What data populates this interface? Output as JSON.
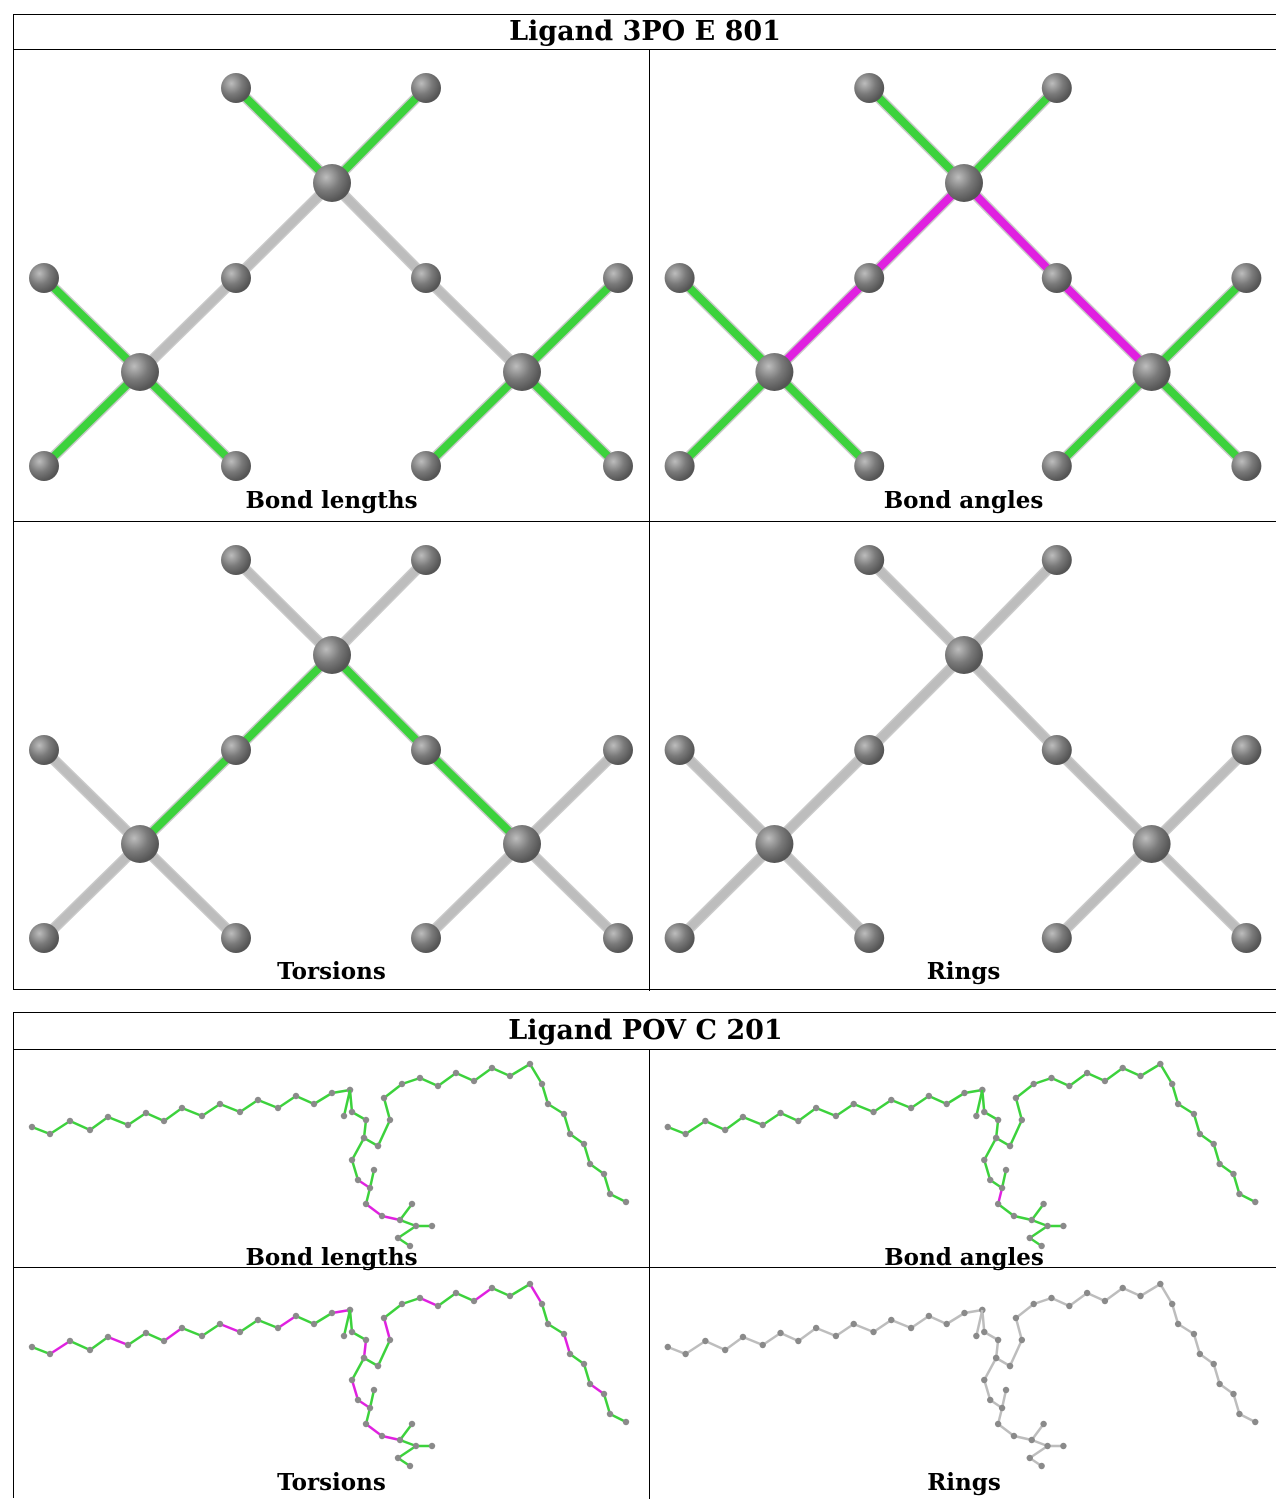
{
  "figure_3PO": {
    "title": "Ligand 3PO E 801",
    "panels": [
      {
        "key": "bond_lengths",
        "caption": "Bond lengths"
      },
      {
        "key": "bond_angles",
        "caption": "Bond angles"
      },
      {
        "key": "torsions",
        "caption": "Torsions"
      },
      {
        "key": "rings",
        "caption": "Rings"
      }
    ]
  },
  "figure_POV": {
    "title": "Ligand POV C 201",
    "panels": [
      {
        "key": "bond_lengths",
        "caption": "Bond lengths"
      },
      {
        "key": "bond_angles",
        "caption": "Bond angles"
      },
      {
        "key": "torsions",
        "caption": "Torsions"
      },
      {
        "key": "rings",
        "caption": "Rings"
      }
    ]
  },
  "colors": {
    "atom": "#7a7a7a",
    "bond_ok": "#3cd23c",
    "bond_outlier": "#e020e0",
    "bond_neutral": "#bdbdbd"
  }
}
